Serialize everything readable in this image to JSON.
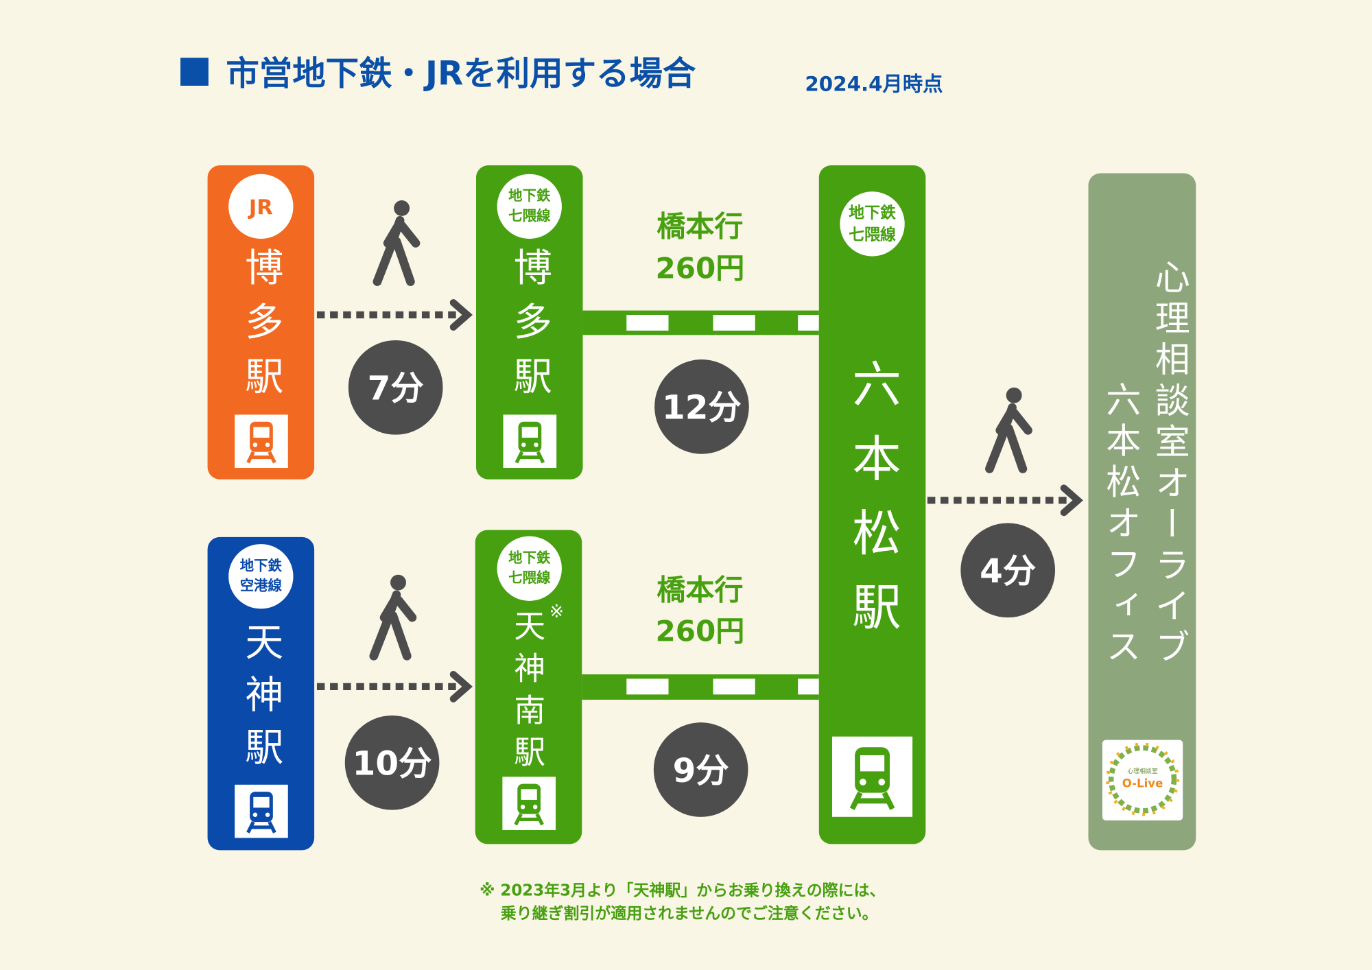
{
  "header": {
    "title": "市営地下鉄・JRを利用する場合",
    "date": "2024.4月時点"
  },
  "stations": [
    {
      "badge": [
        "JR"
      ],
      "name": "博多駅"
    },
    {
      "badge": [
        "地下鉄",
        "七隈線"
      ],
      "name": "博多駅"
    },
    {
      "badge": [
        "地下鉄",
        "空港線"
      ],
      "name": "天神駅"
    },
    {
      "badge": [
        "地下鉄",
        "七隈線"
      ],
      "name": "天神南駅",
      "mark": "※"
    },
    {
      "badge": [
        "地下鉄",
        "七隈線"
      ],
      "name": "六本松駅"
    }
  ],
  "routes": [
    {
      "destination": "橋本行",
      "fare": "260円",
      "time": "12分"
    },
    {
      "destination": "橋本行",
      "fare": "260円",
      "time": "9分"
    }
  ],
  "walks": [
    "7分",
    "10分",
    "4分"
  ],
  "office": {
    "lines": [
      "心理相談室オーライブ",
      "六本松オフィス"
    ],
    "logo": [
      "心理相談室",
      "O-Live"
    ]
  },
  "note": [
    "※ 2023年3月より「天神駅」からお乗り換えの際には、",
    "乗り継ぎ割引が適用されませんのでご注意ください。"
  ]
}
